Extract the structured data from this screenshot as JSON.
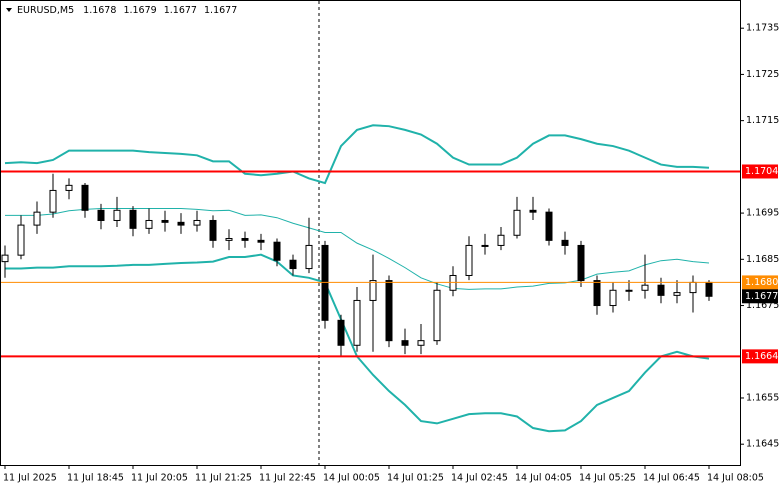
{
  "chart_data": {
    "type": "candlestick",
    "title": "EURUSD,M5",
    "quote": [
      1.1678,
      1.1679,
      1.1677,
      1.1677
    ],
    "categories": [
      "11 Jul 2025",
      null,
      null,
      null,
      "11 Jul 18:45",
      null,
      null,
      null,
      "11 Jul 20:05",
      null,
      null,
      null,
      "11 Jul 21:25",
      null,
      null,
      null,
      "11 Jul 22:45",
      null,
      null,
      null,
      "14 Jul 00:05",
      null,
      null,
      null,
      "14 Jul 01:25",
      null,
      null,
      null,
      "14 Jul 02:45",
      null,
      null,
      null,
      "14 Jul 04:05",
      null,
      null,
      null,
      "14 Jul 05:25",
      null,
      null,
      null,
      "14 Jul 06:45",
      null,
      null,
      null,
      "14 Jul 08:05"
    ],
    "open": [
      1.16845,
      1.16859,
      1.16924,
      1.16952,
      1.16999,
      1.1701,
      1.16956,
      1.16934,
      1.16956,
      1.16917,
      1.16934,
      1.1693,
      1.16924,
      1.16934,
      1.16891,
      1.16895,
      1.16891,
      1.16887,
      1.16848,
      1.1683,
      1.1688,
      1.16718,
      1.16664,
      1.16761,
      1.16804,
      1.16674,
      1.16664,
      1.16674,
      1.16783,
      1.16815,
      1.1688,
      1.1688,
      1.16902,
      1.16956,
      1.16952,
      1.16891,
      1.1688,
      1.16804,
      1.1675,
      1.16783,
      1.16783,
      1.16794,
      1.16772,
      1.16778,
      1.168
    ],
    "high": [
      1.1688,
      1.16945,
      1.16975,
      1.17035,
      1.17025,
      1.17015,
      1.1697,
      1.16985,
      1.16965,
      1.1696,
      1.16955,
      1.1695,
      1.16955,
      1.16945,
      1.16915,
      1.1691,
      1.16905,
      1.16895,
      1.1686,
      1.1694,
      1.1689,
      1.1673,
      1.1679,
      1.1686,
      1.16815,
      1.167,
      1.1671,
      1.168,
      1.16835,
      1.169,
      1.16905,
      1.1692,
      1.16985,
      1.16985,
      1.1696,
      1.1691,
      1.1689,
      1.16815,
      1.168,
      1.16805,
      1.1686,
      1.1681,
      1.16805,
      1.16815,
      1.16805
    ],
    "low": [
      1.1681,
      1.1685,
      1.16905,
      1.1694,
      1.1698,
      1.1694,
      1.16915,
      1.1692,
      1.169,
      1.16905,
      1.1691,
      1.16905,
      1.1691,
      1.16875,
      1.1687,
      1.16875,
      1.1687,
      1.16835,
      1.16815,
      1.1682,
      1.167,
      1.1664,
      1.1665,
      1.1665,
      1.1666,
      1.16645,
      1.16645,
      1.16665,
      1.1677,
      1.16805,
      1.1686,
      1.1687,
      1.16895,
      1.16935,
      1.1688,
      1.1686,
      1.1679,
      1.1673,
      1.16735,
      1.1676,
      1.16765,
      1.16755,
      1.16755,
      1.16735,
      1.1676
    ],
    "close": [
      1.16859,
      1.16924,
      1.16952,
      1.16999,
      1.1701,
      1.16956,
      1.16934,
      1.16956,
      1.16917,
      1.16934,
      1.1693,
      1.16924,
      1.16934,
      1.16891,
      1.16895,
      1.16891,
      1.16887,
      1.16848,
      1.1683,
      1.1688,
      1.16718,
      1.16664,
      1.16761,
      1.16804,
      1.16674,
      1.16664,
      1.16674,
      1.16783,
      1.16815,
      1.1688,
      1.1688,
      1.16902,
      1.16956,
      1.16952,
      1.16891,
      1.1688,
      1.16804,
      1.1675,
      1.16783,
      1.16783,
      1.16794,
      1.16772,
      1.16778,
      1.168,
      1.1677
    ],
    "bands": {
      "color": "#20b2aa",
      "upper": [
        1.17058,
        1.1706,
        1.17058,
        1.17065,
        1.17085,
        1.17085,
        1.17085,
        1.17085,
        1.17085,
        1.17082,
        1.1708,
        1.17078,
        1.17075,
        1.17062,
        1.17062,
        1.17035,
        1.17032,
        1.17035,
        1.1704,
        1.17025,
        1.17015,
        1.17095,
        1.1713,
        1.1714,
        1.17138,
        1.1713,
        1.1712,
        1.171,
        1.1707,
        1.17055,
        1.17055,
        1.17055,
        1.1707,
        1.171,
        1.17118,
        1.17118,
        1.1711,
        1.171,
        1.17095,
        1.17085,
        1.1707,
        1.17055,
        1.1705,
        1.1705,
        1.17048
      ],
      "middle": [
        1.16945,
        1.16945,
        1.16945,
        1.16948,
        1.16955,
        1.16958,
        1.1696,
        1.1696,
        1.1696,
        1.1696,
        1.1696,
        1.1696,
        1.16958,
        1.16955,
        1.16956,
        1.16945,
        1.16946,
        1.1694,
        1.16928,
        1.16918,
        1.16908,
        1.16908,
        1.16885,
        1.1687,
        1.16852,
        1.16832,
        1.1681,
        1.16797,
        1.16787,
        1.16785,
        1.16786,
        1.16786,
        1.1679,
        1.16792,
        1.16798,
        1.16799,
        1.16805,
        1.16818,
        1.16822,
        1.16825,
        1.16838,
        1.16847,
        1.1685,
        1.16845,
        1.16842
      ],
      "lower": [
        1.1683,
        1.1683,
        1.16832,
        1.16832,
        1.16835,
        1.16835,
        1.16835,
        1.16836,
        1.16838,
        1.16838,
        1.1684,
        1.16842,
        1.16843,
        1.16845,
        1.16855,
        1.16855,
        1.1686,
        1.16845,
        1.16815,
        1.1681,
        1.168,
        1.1672,
        1.1664,
        1.166,
        1.16565,
        1.16535,
        1.165,
        1.16495,
        1.16505,
        1.16515,
        1.16517,
        1.16517,
        1.1651,
        1.16485,
        1.16478,
        1.1648,
        1.165,
        1.16535,
        1.1655,
        1.16565,
        1.16605,
        1.1664,
        1.1665,
        1.1664,
        1.16635
      ]
    },
    "levels": [
      {
        "value": 1.1704,
        "color": "#ff0000"
      },
      {
        "value": 1.168,
        "label": "1.1680",
        "color": "#ff8c00"
      },
      {
        "value": 1.1664,
        "color": "#ff0000"
      }
    ],
    "last_price": 1.1677,
    "ylim": [
      1.16405,
      1.17411
    ],
    "yticks": [
      1.1645,
      1.1655,
      1.1675,
      1.1685,
      1.1695,
      1.1715,
      1.1725,
      1.1735
    ],
    "candle_color": "#000000"
  }
}
